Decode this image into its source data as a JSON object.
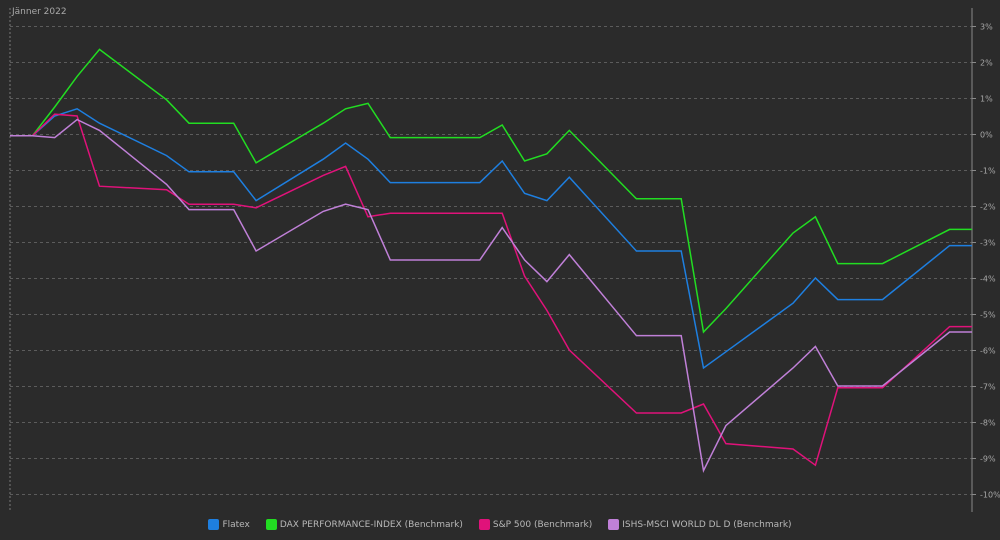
{
  "chart_data": {
    "type": "line",
    "period_label": "Jänner 2022",
    "x": [
      3,
      4,
      5,
      6,
      7,
      10,
      11,
      12,
      13,
      14,
      17,
      18,
      19,
      20,
      21,
      24,
      25,
      26,
      27,
      28,
      31,
      32,
      33,
      34,
      35,
      38,
      39,
      40,
      41,
      42,
      45,
      46
    ],
    "ylim": [
      -10.5,
      3.5
    ],
    "y_ticks": [
      3,
      2,
      1,
      0,
      -1,
      -2,
      -3,
      -4,
      -5,
      -6,
      -7,
      -8,
      -9,
      -10
    ],
    "y_tick_labels": [
      "3%",
      "2%",
      "1%",
      "0%",
      "-1%",
      "-2%",
      "-3%",
      "-4%",
      "-5%",
      "-6%",
      "-7%",
      "-8%",
      "-9%",
      "-10%"
    ],
    "grid": true,
    "legend_position": "bottom-center",
    "series": [
      {
        "name": "Flatex",
        "color": "#1e7fe0",
        "values": [
          -0.05,
          -0.05,
          0.5,
          0.7,
          0.3,
          -0.6,
          -1.05,
          -1.05,
          -1.05,
          -1.85,
          -0.7,
          -0.25,
          -0.7,
          -1.35,
          -1.35,
          -1.35,
          -0.75,
          -1.65,
          -1.85,
          -1.2,
          -3.25,
          -3.25,
          -3.25,
          -6.5,
          -6.05,
          -4.7,
          -4.0,
          -4.6,
          -4.6,
          -4.6,
          -3.1,
          -3.1
        ]
      },
      {
        "name": "DAX PERFORMANCE-INDEX (Benchmark)",
        "color": "#22dd22",
        "values": [
          -0.05,
          -0.05,
          0.75,
          1.6,
          2.35,
          0.95,
          0.3,
          0.3,
          0.3,
          -0.8,
          0.3,
          0.7,
          0.85,
          -0.1,
          -0.1,
          -0.1,
          0.25,
          -0.75,
          -0.55,
          0.1,
          -1.8,
          -1.8,
          -1.8,
          -5.5,
          -4.85,
          -2.75,
          -2.3,
          -3.6,
          -3.6,
          -3.6,
          -2.65,
          -2.65
        ]
      },
      {
        "name": "S&P 500 (Benchmark)",
        "color": "#e0127a",
        "values": [
          -0.05,
          -0.05,
          0.55,
          0.5,
          -1.45,
          -1.55,
          -1.95,
          -1.95,
          -1.95,
          -2.05,
          -1.15,
          -0.9,
          -2.3,
          -2.2,
          -2.2,
          -2.2,
          -2.2,
          -3.95,
          -4.9,
          -6.0,
          -7.75,
          -7.75,
          -7.75,
          -7.5,
          -8.6,
          -8.75,
          -9.2,
          -7.05,
          -7.05,
          -7.05,
          -5.35,
          -5.35
        ]
      },
      {
        "name": "ISHS-MSCI WORLD DL D (Benchmark)",
        "color": "#c080d8",
        "values": [
          -0.05,
          -0.05,
          -0.1,
          0.4,
          0.1,
          -1.4,
          -2.1,
          -2.1,
          -2.1,
          -3.25,
          -2.15,
          -1.95,
          -2.1,
          -3.5,
          -3.5,
          -3.5,
          -2.6,
          -3.5,
          -4.1,
          -3.35,
          -5.6,
          -5.6,
          -5.6,
          -9.35,
          -8.1,
          -6.5,
          -5.9,
          -7.0,
          -7.0,
          -7.0,
          -5.5,
          -5.5
        ]
      }
    ]
  }
}
